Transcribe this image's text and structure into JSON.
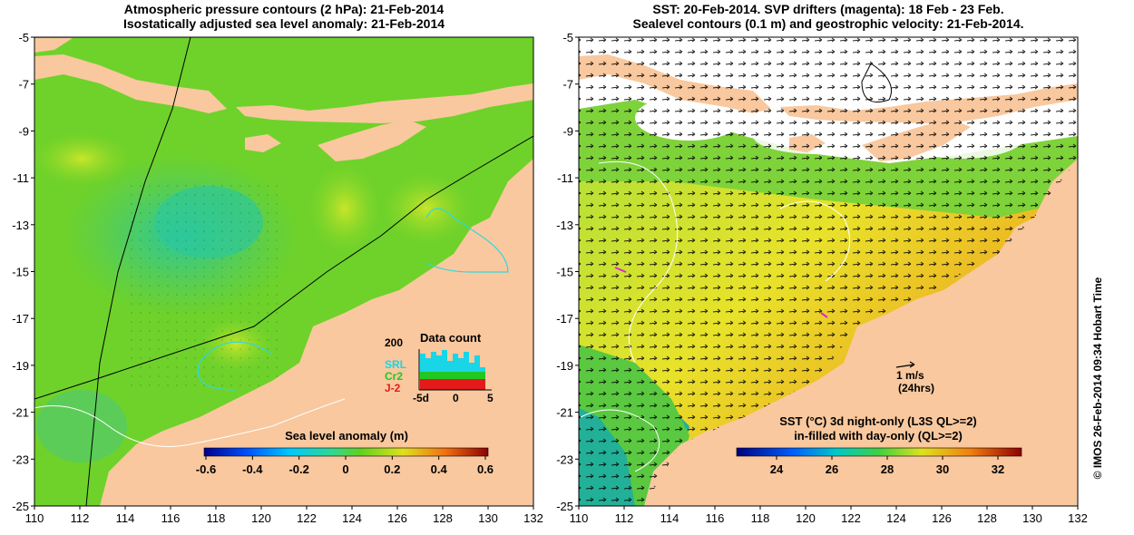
{
  "left_panel": {
    "title_line1": "Atmospheric pressure contours (2 hPa): 21-Feb-2014",
    "title_line2": "Isostatically adjusted sea level anomaly: 21-Feb-2014",
    "colorbar_label": "Sea level anomaly (m)",
    "colorbar_ticks": [
      "-0.6",
      "-0.4",
      "-0.2",
      "0",
      "0.2",
      "0.4",
      "0.6"
    ],
    "inset": {
      "title": "Data count",
      "ymax": "200",
      "series": [
        {
          "name": "SRL",
          "color": "#19d6e6"
        },
        {
          "name": "Cr2",
          "color": "#22c822"
        },
        {
          "name": "J-2",
          "color": "#e31a1a"
        }
      ],
      "xticks": [
        "-5d",
        "0",
        "5"
      ]
    }
  },
  "right_panel": {
    "title_line1": "SST: 20-Feb-2014. SVP drifters (magenta): 18 Feb - 23 Feb.",
    "title_line2": "Sealevel contours (0.1 m) and geostrophic velocity: 21-Feb-2014.",
    "scale_label": "1 m/s",
    "scale_sub": "(24hrs)",
    "colorbar_label1": "SST (°C)  3d night-only (L3S QL>=2)",
    "colorbar_label2": "in-filled with day-only (QL>=2)",
    "colorbar_ticks": [
      "24",
      "26",
      "28",
      "30",
      "32"
    ]
  },
  "axes": {
    "x_ticks": [
      "110",
      "112",
      "114",
      "116",
      "118",
      "120",
      "122",
      "124",
      "126",
      "128",
      "130",
      "132"
    ],
    "y_ticks": [
      "-5",
      "-7",
      "-9",
      "-11",
      "-13",
      "-15",
      "-17",
      "-19",
      "-21",
      "-23",
      "-25"
    ]
  },
  "sidebar_text": "© IMOS 26-Feb-2014 09:34 Hobart Time",
  "colors": {
    "land": "#f9c89e",
    "sla_green": "#6ed22a",
    "sst_yellow": "#f0e22a"
  }
}
